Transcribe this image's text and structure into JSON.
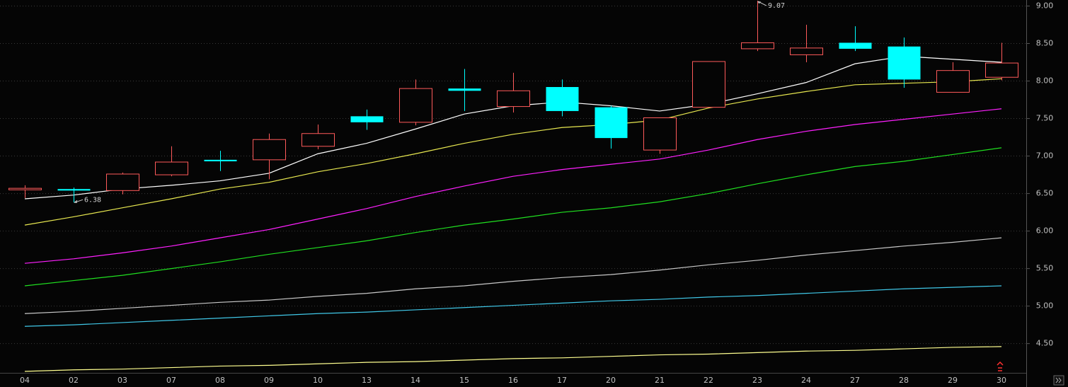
{
  "chart_data": {
    "type": "candlestick",
    "categories": [
      "04",
      "02",
      "03",
      "07",
      "08",
      "09",
      "10",
      "13",
      "14",
      "15",
      "16",
      "17",
      "20",
      "21",
      "22",
      "23",
      "24",
      "27",
      "28",
      "29",
      "30"
    ],
    "open": [
      6.55,
      6.56,
      6.54,
      6.75,
      6.95,
      6.95,
      7.13,
      7.53,
      7.45,
      7.9,
      7.66,
      7.92,
      7.65,
      7.08,
      7.65,
      8.43,
      8.35,
      8.51,
      8.46,
      7.85,
      8.05
    ],
    "high": [
      6.61,
      6.58,
      6.78,
      7.13,
      7.07,
      7.3,
      7.42,
      7.62,
      8.02,
      8.16,
      8.11,
      8.02,
      7.67,
      7.51,
      8.26,
      9.07,
      8.75,
      8.73,
      8.58,
      8.25,
      8.51
    ],
    "low": [
      6.44,
      6.38,
      6.49,
      6.73,
      6.8,
      6.69,
      7.09,
      7.35,
      7.41,
      7.6,
      7.58,
      7.53,
      7.1,
      7.03,
      7.65,
      8.4,
      8.25,
      8.4,
      7.91,
      7.85,
      8.01
    ],
    "close": [
      6.57,
      6.54,
      6.76,
      6.92,
      6.93,
      7.22,
      7.3,
      7.45,
      7.9,
      7.87,
      7.87,
      7.6,
      7.24,
      7.51,
      8.26,
      8.51,
      8.44,
      8.43,
      8.02,
      8.14,
      8.24
    ],
    "up_color": "#ff5a5a",
    "down_color": "#00ffff",
    "high_label": "9.07",
    "low_label": "6.38",
    "lines": [
      {
        "color": "#ffffff",
        "values": [
          6.43,
          6.48,
          6.56,
          6.61,
          6.67,
          6.77,
          7.03,
          7.17,
          7.36,
          7.56,
          7.67,
          7.72,
          7.67,
          7.6,
          7.69,
          7.83,
          7.98,
          8.23,
          8.33,
          8.29,
          8.25
        ]
      },
      {
        "color": "#e8e850",
        "values": [
          6.08,
          6.19,
          6.31,
          6.43,
          6.56,
          6.65,
          6.79,
          6.9,
          7.03,
          7.17,
          7.29,
          7.38,
          7.42,
          7.48,
          7.64,
          7.76,
          7.86,
          7.95,
          7.97,
          7.99,
          8.03
        ]
      },
      {
        "color": "#ff20ff",
        "values": [
          5.57,
          5.63,
          5.71,
          5.8,
          5.91,
          6.02,
          6.16,
          6.3,
          6.46,
          6.6,
          6.73,
          6.82,
          6.89,
          6.96,
          7.08,
          7.22,
          7.33,
          7.42,
          7.49,
          7.56,
          7.63
        ]
      },
      {
        "color": "#20e020",
        "values": [
          5.27,
          5.34,
          5.41,
          5.5,
          5.59,
          5.69,
          5.78,
          5.87,
          5.98,
          6.08,
          6.16,
          6.25,
          6.31,
          6.39,
          6.5,
          6.63,
          6.75,
          6.86,
          6.93,
          7.02,
          7.11
        ]
      },
      {
        "color": "#c8c8c8",
        "values": [
          4.9,
          4.93,
          4.97,
          5.01,
          5.05,
          5.08,
          5.13,
          5.17,
          5.23,
          5.27,
          5.33,
          5.38,
          5.42,
          5.48,
          5.55,
          5.61,
          5.68,
          5.74,
          5.8,
          5.85,
          5.91
        ]
      },
      {
        "color": "#40c8e8",
        "values": [
          4.73,
          4.75,
          4.78,
          4.81,
          4.84,
          4.87,
          4.9,
          4.92,
          4.95,
          4.98,
          5.01,
          5.04,
          5.07,
          5.09,
          5.12,
          5.14,
          5.17,
          5.2,
          5.23,
          5.25,
          5.27
        ]
      },
      {
        "color": "#ffff90",
        "values": [
          4.13,
          4.15,
          4.16,
          4.18,
          4.2,
          4.21,
          4.23,
          4.25,
          4.26,
          4.28,
          4.3,
          4.31,
          4.33,
          4.35,
          4.36,
          4.38,
          4.4,
          4.41,
          4.43,
          4.45,
          4.46
        ]
      }
    ],
    "ylim": [
      4.11,
      9.08
    ],
    "yticks": [
      {
        "value": 4.5,
        "label": "4.50"
      },
      {
        "value": 5,
        "label": "5.00"
      },
      {
        "value": 5.5,
        "label": "5.50"
      },
      {
        "value": 6,
        "label": "6.00"
      },
      {
        "value": 6.5,
        "label": "6.50"
      },
      {
        "value": 7,
        "label": "7.00"
      },
      {
        "value": 7.5,
        "label": "7.50"
      },
      {
        "value": 8,
        "label": "8.00"
      },
      {
        "value": 8.5,
        "label": "8.50"
      },
      {
        "value": 9,
        "label": "9.00"
      }
    ],
    "grid": true
  }
}
